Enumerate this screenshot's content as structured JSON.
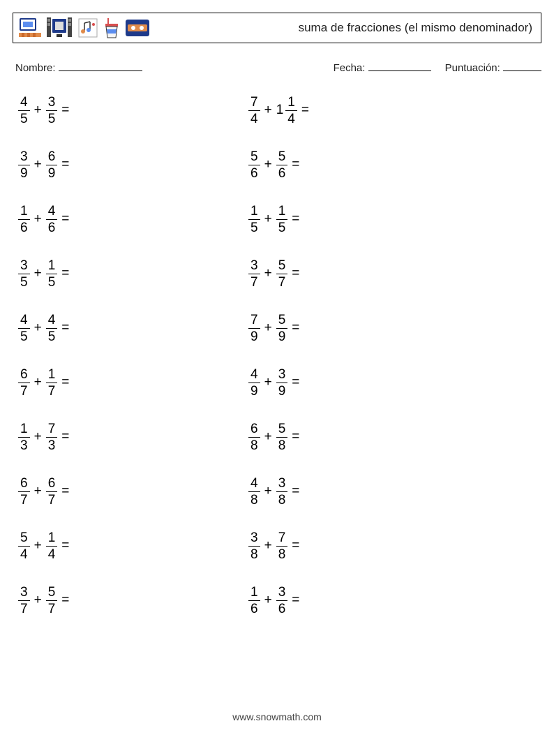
{
  "header": {
    "title": "suma de fracciones (el mismo denominador)"
  },
  "info": {
    "name_label": "Nombre:",
    "date_label": "Fecha:",
    "score_label": "Puntuación:"
  },
  "icons": [
    {
      "name": "computer-icon",
      "primary": "#5b8def",
      "secondary": "#e08b4a"
    },
    {
      "name": "screen-icon",
      "primary": "#1e3a8a",
      "secondary": "#c0c0c0"
    },
    {
      "name": "music-icon",
      "primary": "#e08b4a",
      "secondary": "#5b8def"
    },
    {
      "name": "cup-icon",
      "primary": "#d94f4f",
      "secondary": "#f5f5f5"
    },
    {
      "name": "tape-icon",
      "primary": "#1e3a8a",
      "secondary": "#e08b4a"
    }
  ],
  "problems": {
    "col1": [
      {
        "a_num": "4",
        "a_den": "5",
        "b_whole": "",
        "b_num": "3",
        "b_den": "5"
      },
      {
        "a_num": "3",
        "a_den": "9",
        "b_whole": "",
        "b_num": "6",
        "b_den": "9"
      },
      {
        "a_num": "1",
        "a_den": "6",
        "b_whole": "",
        "b_num": "4",
        "b_den": "6"
      },
      {
        "a_num": "3",
        "a_den": "5",
        "b_whole": "",
        "b_num": "1",
        "b_den": "5"
      },
      {
        "a_num": "4",
        "a_den": "5",
        "b_whole": "",
        "b_num": "4",
        "b_den": "5"
      },
      {
        "a_num": "6",
        "a_den": "7",
        "b_whole": "",
        "b_num": "1",
        "b_den": "7"
      },
      {
        "a_num": "1",
        "a_den": "3",
        "b_whole": "",
        "b_num": "7",
        "b_den": "3"
      },
      {
        "a_num": "6",
        "a_den": "7",
        "b_whole": "",
        "b_num": "6",
        "b_den": "7"
      },
      {
        "a_num": "5",
        "a_den": "4",
        "b_whole": "",
        "b_num": "1",
        "b_den": "4"
      },
      {
        "a_num": "3",
        "a_den": "7",
        "b_whole": "",
        "b_num": "5",
        "b_den": "7"
      }
    ],
    "col2": [
      {
        "a_num": "7",
        "a_den": "4",
        "b_whole": "1",
        "b_num": "1",
        "b_den": "4"
      },
      {
        "a_num": "5",
        "a_den": "6",
        "b_whole": "",
        "b_num": "5",
        "b_den": "6"
      },
      {
        "a_num": "1",
        "a_den": "5",
        "b_whole": "",
        "b_num": "1",
        "b_den": "5"
      },
      {
        "a_num": "3",
        "a_den": "7",
        "b_whole": "",
        "b_num": "5",
        "b_den": "7"
      },
      {
        "a_num": "7",
        "a_den": "9",
        "b_whole": "",
        "b_num": "5",
        "b_den": "9"
      },
      {
        "a_num": "4",
        "a_den": "9",
        "b_whole": "",
        "b_num": "3",
        "b_den": "9"
      },
      {
        "a_num": "6",
        "a_den": "8",
        "b_whole": "",
        "b_num": "5",
        "b_den": "8"
      },
      {
        "a_num": "4",
        "a_den": "8",
        "b_whole": "",
        "b_num": "3",
        "b_den": "8"
      },
      {
        "a_num": "3",
        "a_den": "8",
        "b_whole": "",
        "b_num": "7",
        "b_den": "8"
      },
      {
        "a_num": "1",
        "a_den": "6",
        "b_whole": "",
        "b_num": "3",
        "b_den": "6"
      }
    ]
  },
  "symbols": {
    "plus": "+",
    "equals": "="
  },
  "footer": {
    "text": "www.snowmath.com"
  },
  "layout": {
    "underline_name_width": 120,
    "underline_date_width": 90,
    "underline_score_width": 55
  }
}
